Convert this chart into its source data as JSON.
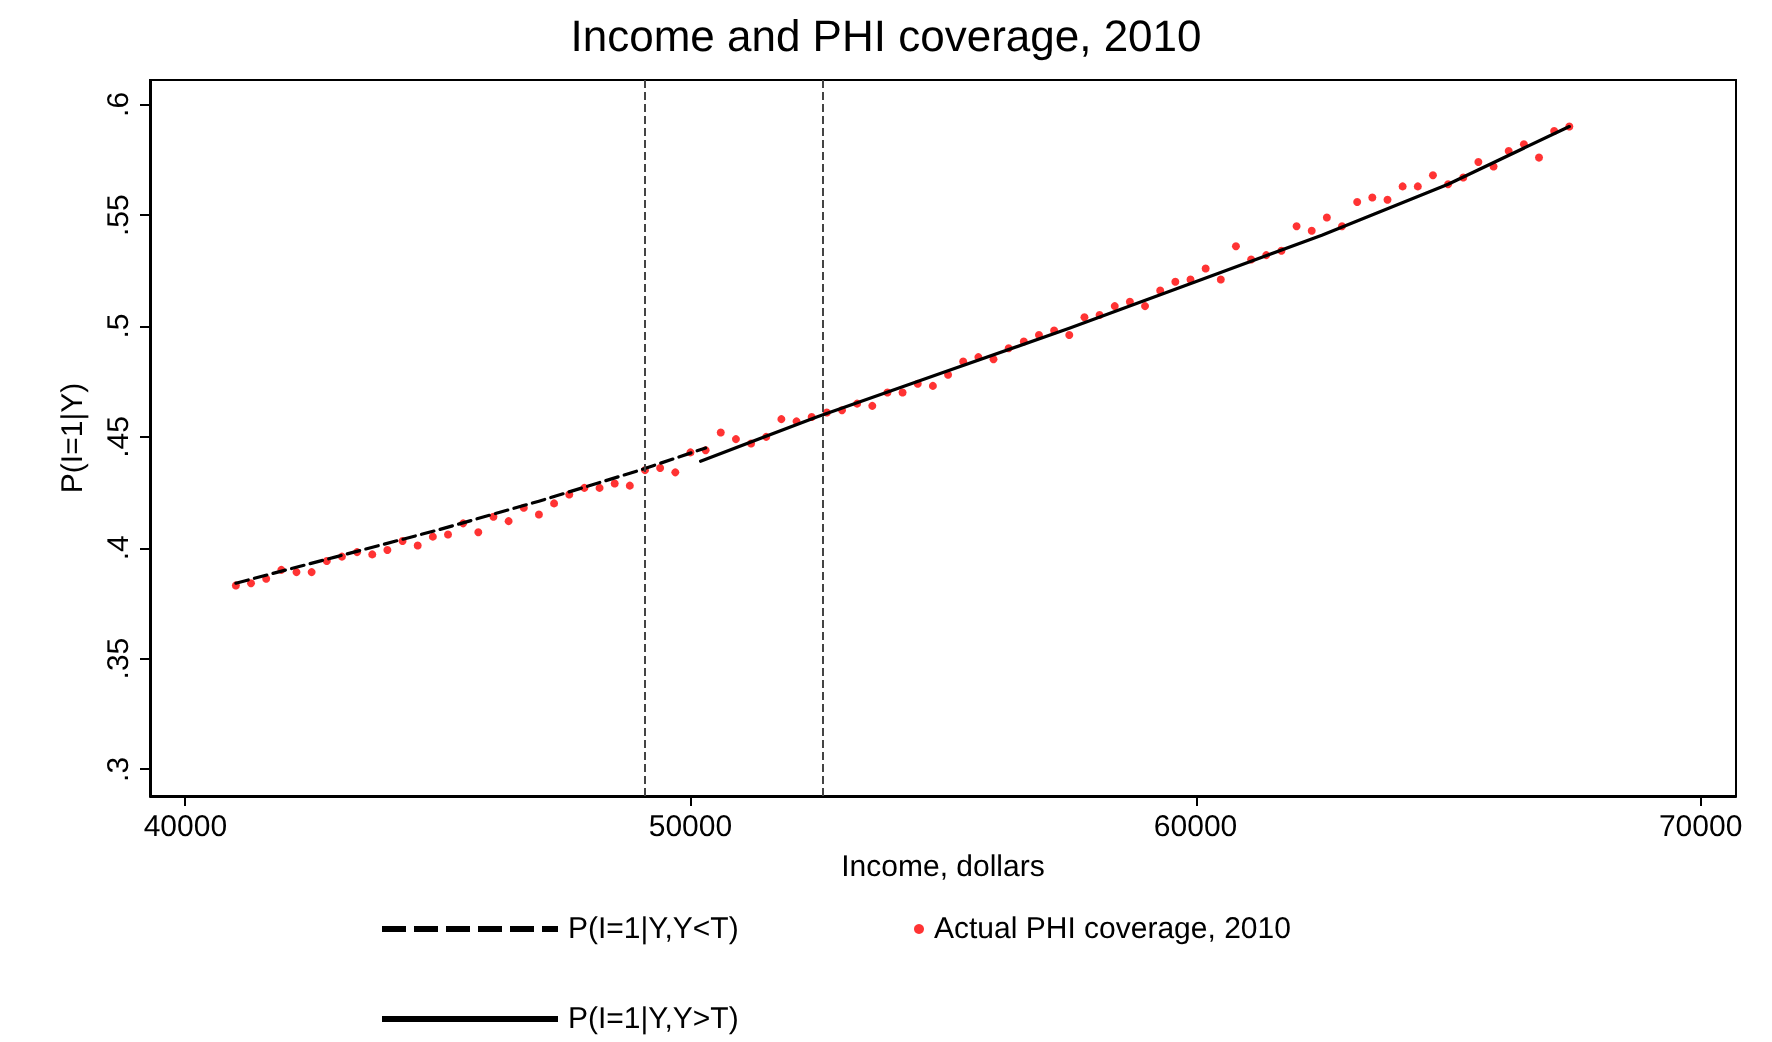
{
  "chart_data": {
    "type": "line",
    "title": "Income and PHI coverage, 2010",
    "xlabel": "Income, dollars",
    "ylabel": "P(I=1|Y)",
    "xlim": [
      39300,
      70700
    ],
    "xticks": [
      40000,
      50000,
      60000,
      70000
    ],
    "ylim": [
      0.288,
      0.611
    ],
    "yticks": [
      {
        "value": 0.3,
        "label": ".3"
      },
      {
        "value": 0.35,
        "label": ".35"
      },
      {
        "value": 0.4,
        "label": ".4"
      },
      {
        "value": 0.45,
        "label": ".45"
      },
      {
        "value": 0.5,
        "label": ".5"
      },
      {
        "value": 0.55,
        "label": ".55"
      },
      {
        "value": 0.6,
        "label": ".6"
      }
    ],
    "grid": false,
    "legend": "bottom",
    "ref_lines": [
      {
        "axis": "x",
        "value": 49100,
        "label": null,
        "color": "#444444",
        "line_style": "dashed"
      },
      {
        "axis": "x",
        "value": 52600,
        "label": null,
        "color": "#444444",
        "line_style": "dashed"
      }
    ],
    "series": [
      {
        "name": "P(I=1|Y,Y<T)",
        "type": "line",
        "color": "#000000",
        "line_style": "dashed",
        "marker": "none",
        "x": [
          41000,
          43000,
          45000,
          47000,
          49000,
          50300
        ],
        "values": [
          0.384,
          0.396,
          0.408,
          0.421,
          0.435,
          0.445
        ]
      },
      {
        "name": "Actual PHI coverage, 2010",
        "type": "scatter",
        "color": "#ff0000",
        "marker": "circle",
        "x": [
          41000,
          41300,
          41600,
          41900,
          42200,
          42500,
          42800,
          43100,
          43400,
          43700,
          44000,
          44300,
          44600,
          44900,
          45200,
          45500,
          45800,
          46100,
          46400,
          46700,
          47000,
          47300,
          47600,
          47900,
          48200,
          48500,
          48800,
          49100,
          49400,
          49700,
          50000,
          50300,
          50600,
          50900,
          51200,
          51500,
          51800,
          52100,
          52400,
          52700,
          53000,
          53300,
          53600,
          53900,
          54200,
          54500,
          54800,
          55100,
          55400,
          55700,
          56000,
          56300,
          56600,
          56900,
          57200,
          57500,
          57800,
          58100,
          58400,
          58700,
          59000,
          59300,
          59600,
          59900,
          60200,
          60500,
          60800,
          61100,
          61400,
          61700,
          62000,
          62300,
          62600,
          62900,
          63200,
          63500,
          63800,
          64100,
          64400,
          64700,
          65000,
          65300,
          65600,
          65900,
          66200,
          66500,
          66800,
          67100,
          67400
        ],
        "values": [
          0.383,
          0.384,
          0.386,
          0.39,
          0.389,
          0.389,
          0.394,
          0.396,
          0.398,
          0.397,
          0.399,
          0.403,
          0.401,
          0.405,
          0.406,
          0.411,
          0.407,
          0.414,
          0.412,
          0.418,
          0.415,
          0.42,
          0.424,
          0.427,
          0.427,
          0.429,
          0.428,
          0.435,
          0.436,
          0.434,
          0.443,
          0.444,
          0.452,
          0.449,
          0.447,
          0.45,
          0.458,
          0.457,
          0.459,
          0.461,
          0.462,
          0.465,
          0.464,
          0.47,
          0.47,
          0.474,
          0.473,
          0.478,
          0.484,
          0.486,
          0.485,
          0.49,
          0.493,
          0.496,
          0.498,
          0.496,
          0.504,
          0.505,
          0.509,
          0.511,
          0.509,
          0.516,
          0.52,
          0.521,
          0.526,
          0.521,
          0.536,
          0.53,
          0.532,
          0.534,
          0.545,
          0.543,
          0.549,
          0.545,
          0.556,
          0.558,
          0.557,
          0.563,
          0.563,
          0.568,
          0.564,
          0.567,
          0.574,
          0.572,
          0.579,
          0.582,
          0.576,
          0.588,
          0.59
        ]
      },
      {
        "name": "P(I=1|Y,Y>T)",
        "type": "line",
        "color": "#000000",
        "line_style": "solid",
        "marker": "none",
        "x": [
          50200,
          52500,
          55000,
          57500,
          60000,
          62500,
          65000,
          67400
        ],
        "values": [
          0.439,
          0.459,
          0.479,
          0.499,
          0.52,
          0.541,
          0.564,
          0.59
        ]
      }
    ]
  }
}
